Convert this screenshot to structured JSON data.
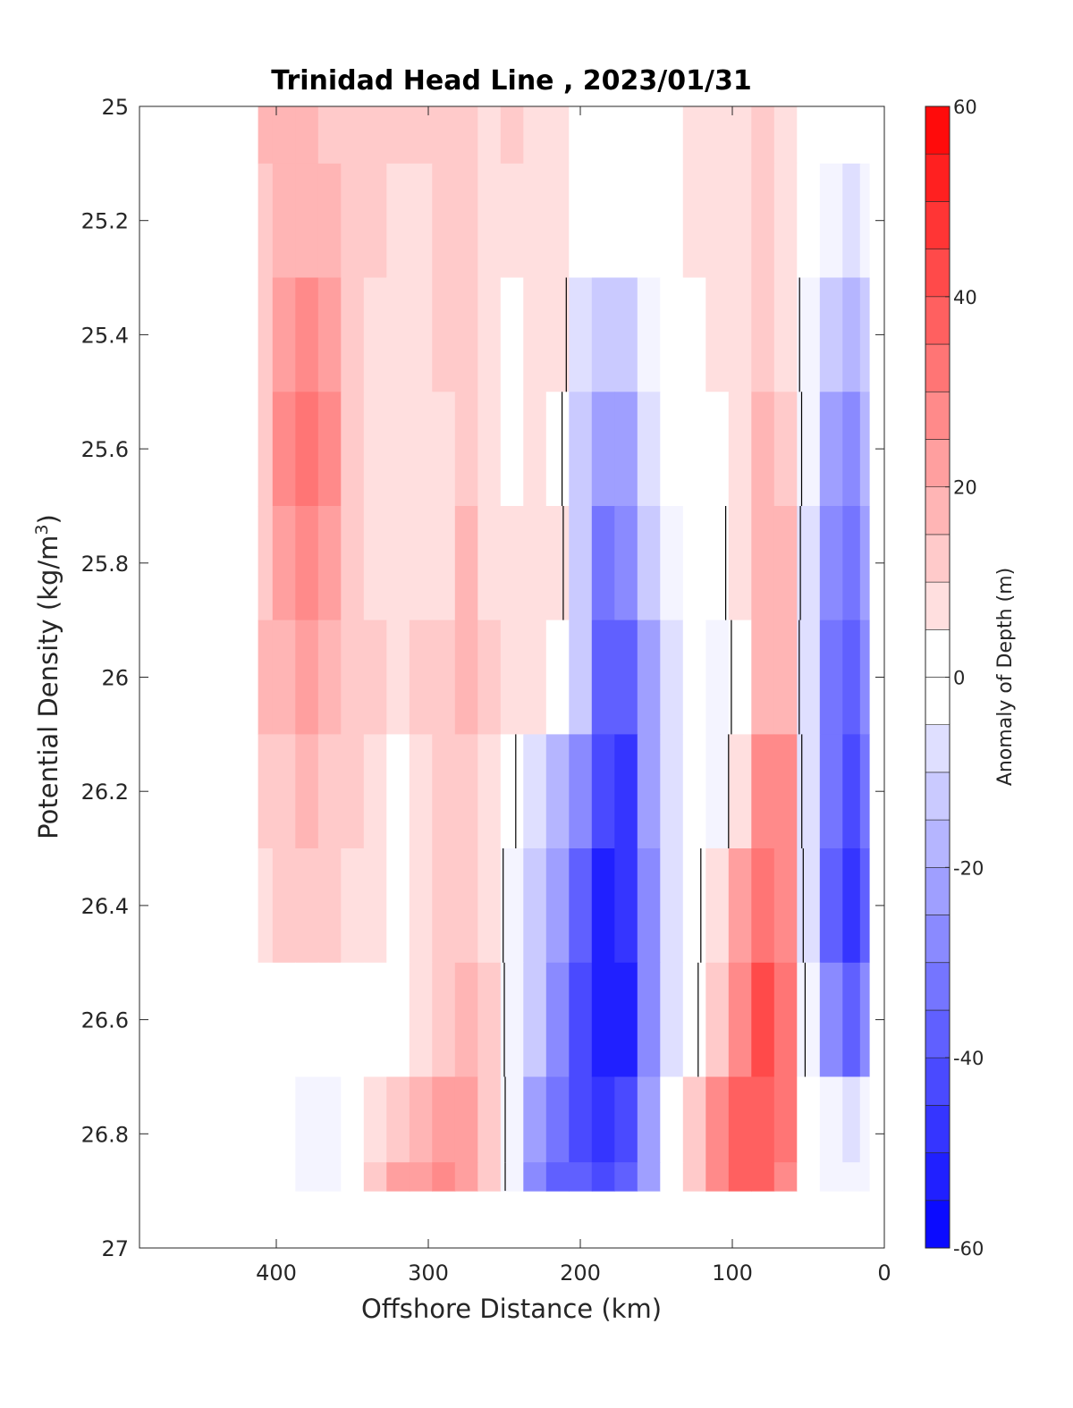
{
  "chart_data": {
    "type": "heatmap",
    "title": "Trinidad Head Line , 2023/01/31",
    "xlabel": "Offshore Distance (km)",
    "ylabel_text": "Potential Density (kg/m",
    "ylabel_sup": "3",
    "ylabel_close": ")",
    "colorbar_label": "Anomaly of Depth (m)",
    "xlim": [
      490,
      0
    ],
    "x_reversed": true,
    "ylim": [
      25,
      27
    ],
    "y_reversed": true,
    "x_ticks": [
      400,
      300,
      200,
      100,
      0
    ],
    "x_tick_labels": [
      "400",
      "300",
      "200",
      "100",
      "0"
    ],
    "y_ticks": [
      25,
      25.2,
      25.4,
      25.6,
      25.8,
      26,
      26.2,
      26.4,
      26.6,
      26.8,
      27
    ],
    "y_tick_labels": [
      "25",
      "25.2",
      "25.4",
      "25.6",
      "25.8",
      "26",
      "26.2",
      "26.4",
      "26.6",
      "26.8",
      "27"
    ],
    "colorbar_range": [
      -60,
      60
    ],
    "colorbar_step": 5,
    "colorbar_ticks": [
      60,
      40,
      20,
      0,
      -20,
      -40,
      -60
    ],
    "colorbar_tick_labels": [
      "60",
      "40",
      "20",
      "0",
      "-20",
      "-40",
      "-60"
    ],
    "colormap": {
      "negative": "#0000ff",
      "zero": "#ffffff",
      "positive": "#ff0000"
    },
    "zero_contour_color": "#000000",
    "data_extent": {
      "x": [
        412,
        10
      ],
      "y": [
        25,
        26.9
      ]
    },
    "x": [
      410,
      395,
      380,
      365,
      350,
      335,
      320,
      305,
      290,
      275,
      260,
      245,
      230,
      215,
      200,
      185,
      170,
      155,
      140,
      125,
      110,
      95,
      80,
      65,
      50,
      35,
      20,
      12
    ],
    "y": [
      25.0,
      25.2,
      25.4,
      25.6,
      25.8,
      26.0,
      26.2,
      26.4,
      26.6,
      26.8,
      26.9
    ],
    "z": [
      [
        15,
        15,
        15,
        12,
        12,
        12,
        10,
        10,
        10,
        10,
        6,
        10,
        8,
        5,
        0,
        0,
        0,
        0,
        0,
        5,
        8,
        5,
        10,
        8,
        0,
        0,
        0,
        0
      ],
      [
        12,
        15,
        18,
        15,
        12,
        10,
        8,
        8,
        10,
        12,
        8,
        5,
        8,
        5,
        0,
        -3,
        -2,
        0,
        2,
        5,
        8,
        5,
        10,
        8,
        0,
        -5,
        -8,
        -5
      ],
      [
        12,
        22,
        28,
        22,
        12,
        8,
        5,
        5,
        10,
        12,
        8,
        3,
        5,
        5,
        -8,
        -15,
        -12,
        -5,
        0,
        2,
        5,
        5,
        10,
        8,
        -5,
        -15,
        -18,
        -12
      ],
      [
        12,
        25,
        32,
        25,
        12,
        8,
        5,
        5,
        8,
        12,
        8,
        3,
        5,
        3,
        -12,
        -25,
        -22,
        -10,
        -2,
        0,
        0,
        5,
        15,
        12,
        -5,
        -25,
        -30,
        -20
      ],
      [
        12,
        22,
        28,
        22,
        12,
        8,
        5,
        5,
        8,
        18,
        8,
        5,
        8,
        5,
        -15,
        -32,
        -30,
        -15,
        -5,
        -2,
        -3,
        5,
        18,
        15,
        -8,
        -30,
        -35,
        -25
      ],
      [
        15,
        18,
        22,
        18,
        12,
        10,
        8,
        10,
        12,
        18,
        12,
        8,
        5,
        0,
        -15,
        -38,
        -40,
        -22,
        -8,
        -3,
        -5,
        3,
        15,
        15,
        -10,
        -32,
        -38,
        -30
      ],
      [
        12,
        12,
        15,
        12,
        10,
        8,
        0,
        5,
        12,
        14,
        8,
        2,
        -10,
        -20,
        -30,
        -45,
        -48,
        -25,
        -8,
        -2,
        -5,
        5,
        25,
        25,
        -10,
        -35,
        -42,
        -35
      ],
      [
        8,
        10,
        12,
        10,
        8,
        5,
        0,
        5,
        10,
        12,
        8,
        -5,
        -15,
        -25,
        -40,
        -52,
        -50,
        -28,
        -10,
        -2,
        5,
        20,
        32,
        28,
        -8,
        -38,
        -48,
        -40
      ],
      [
        0,
        0,
        3,
        2,
        0,
        0,
        3,
        5,
        12,
        18,
        10,
        -5,
        -15,
        -28,
        -42,
        -55,
        -52,
        -28,
        -10,
        -2,
        10,
        28,
        42,
        30,
        -5,
        -30,
        -38,
        -30
      ],
      [
        0,
        -3,
        -5,
        -5,
        0,
        8,
        12,
        15,
        20,
        22,
        12,
        -5,
        -22,
        -35,
        -45,
        -48,
        -42,
        -25,
        0,
        10,
        25,
        35,
        38,
        30,
        0,
        -5,
        -8,
        -5
      ],
      [
        0,
        -3,
        -5,
        -5,
        0,
        10,
        20,
        22,
        25,
        20,
        12,
        -5,
        -30,
        -38,
        -40,
        -42,
        -38,
        -22,
        0,
        10,
        25,
        35,
        35,
        28,
        0,
        -5,
        -5,
        -5
      ]
    ]
  }
}
